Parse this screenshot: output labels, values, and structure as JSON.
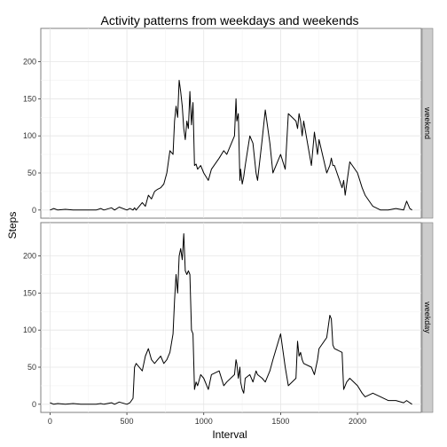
{
  "chart_data": {
    "type": "line",
    "title": "Activity patterns from weekdays and weekends",
    "xlabel": "Interval",
    "ylabel": "Steps",
    "xlim": [
      -60,
      2415
    ],
    "ylim": [
      -11,
      245
    ],
    "x_ticks": [
      0,
      500,
      1000,
      1500,
      2000
    ],
    "y_ticks": [
      0,
      50,
      100,
      150,
      200
    ],
    "grid": true,
    "legend": "none",
    "facets": [
      "weekend",
      "weekday"
    ],
    "series": [
      {
        "panel": "weekend",
        "x": [
          0,
          25,
          50,
          100,
          150,
          200,
          300,
          330,
          350,
          400,
          420,
          450,
          500,
          520,
          540,
          550,
          560,
          600,
          620,
          640,
          660,
          680,
          700,
          720,
          740,
          760,
          780,
          800,
          810,
          820,
          830,
          840,
          850,
          860,
          870,
          880,
          890,
          900,
          910,
          920,
          930,
          940,
          950,
          960,
          980,
          1000,
          1030,
          1050,
          1100,
          1130,
          1150,
          1200,
          1210,
          1215,
          1225,
          1235,
          1240,
          1250,
          1260,
          1270,
          1300,
          1320,
          1340,
          1350,
          1380,
          1400,
          1430,
          1450,
          1500,
          1530,
          1550,
          1600,
          1610,
          1620,
          1630,
          1640,
          1650,
          1700,
          1720,
          1740,
          1750,
          1800,
          1820,
          1830,
          1840,
          1850,
          1900,
          1910,
          1920,
          1930,
          1950,
          2000,
          2030,
          2050,
          2100,
          2150,
          2200,
          2250,
          2300,
          2320,
          2340,
          2355
        ],
        "y": [
          0,
          2,
          0,
          1,
          0,
          0,
          0,
          2,
          0,
          3,
          0,
          4,
          0,
          2,
          0,
          3,
          0,
          10,
          5,
          20,
          15,
          25,
          28,
          30,
          35,
          50,
          80,
          75,
          120,
          140,
          125,
          175,
          160,
          140,
          110,
          95,
          120,
          110,
          160,
          115,
          145,
          60,
          62,
          55,
          60,
          50,
          40,
          55,
          70,
          80,
          75,
          100,
          150,
          120,
          130,
          40,
          55,
          35,
          45,
          60,
          100,
          90,
          50,
          40,
          95,
          135,
          90,
          50,
          75,
          55,
          130,
          120,
          110,
          130,
          120,
          100,
          120,
          60,
          105,
          75,
          95,
          50,
          60,
          70,
          60,
          60,
          30,
          40,
          20,
          35,
          65,
          50,
          30,
          20,
          5,
          0,
          0,
          2,
          0,
          12,
          2,
          0
        ]
      },
      {
        "panel": "weekday",
        "x": [
          0,
          25,
          50,
          100,
          150,
          200,
          300,
          330,
          350,
          400,
          420,
          450,
          500,
          520,
          540,
          550,
          560,
          600,
          620,
          640,
          660,
          680,
          700,
          720,
          740,
          760,
          780,
          800,
          810,
          820,
          830,
          840,
          850,
          860,
          870,
          880,
          890,
          900,
          910,
          920,
          930,
          940,
          950,
          960,
          980,
          1000,
          1030,
          1050,
          1100,
          1130,
          1150,
          1200,
          1210,
          1215,
          1225,
          1235,
          1240,
          1250,
          1260,
          1270,
          1300,
          1320,
          1340,
          1350,
          1380,
          1400,
          1430,
          1450,
          1500,
          1530,
          1550,
          1600,
          1610,
          1620,
          1630,
          1640,
          1650,
          1700,
          1720,
          1740,
          1750,
          1800,
          1820,
          1830,
          1840,
          1850,
          1900,
          1910,
          1920,
          1930,
          1950,
          2000,
          2030,
          2050,
          2100,
          2150,
          2200,
          2250,
          2300,
          2320,
          2340,
          2355
        ],
        "y": [
          2,
          0,
          1,
          0,
          1,
          0,
          0,
          1,
          0,
          2,
          0,
          3,
          0,
          2,
          8,
          50,
          55,
          45,
          65,
          75,
          60,
          55,
          60,
          65,
          55,
          60,
          70,
          95,
          140,
          175,
          150,
          200,
          210,
          195,
          230,
          180,
          175,
          180,
          175,
          100,
          95,
          20,
          30,
          25,
          40,
          35,
          20,
          40,
          45,
          25,
          30,
          40,
          60,
          55,
          35,
          50,
          30,
          20,
          15,
          35,
          40,
          30,
          45,
          40,
          35,
          30,
          45,
          60,
          95,
          50,
          25,
          35,
          85,
          65,
          70,
          60,
          55,
          50,
          40,
          60,
          75,
          90,
          120,
          115,
          80,
          75,
          70,
          20,
          25,
          30,
          35,
          25,
          15,
          10,
          15,
          10,
          5,
          5,
          2,
          5,
          2,
          0
        ]
      }
    ]
  }
}
